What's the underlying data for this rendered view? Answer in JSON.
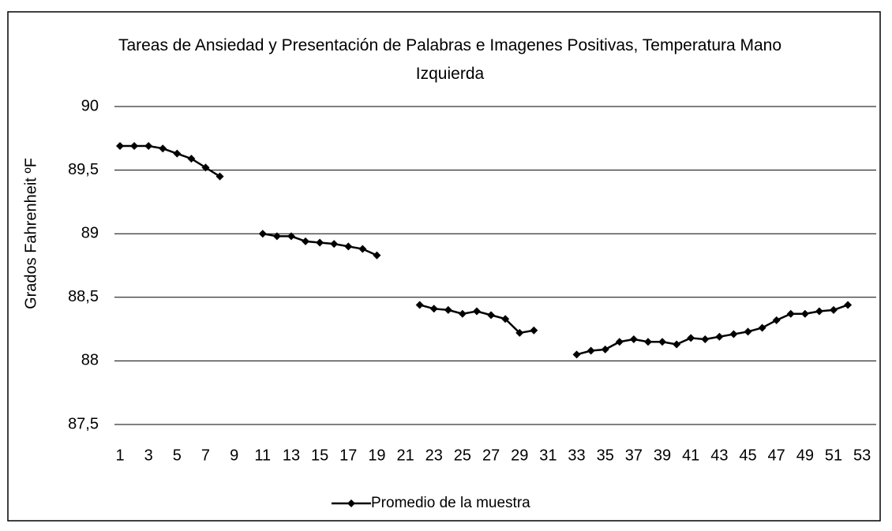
{
  "chart_data": {
    "type": "line",
    "title": "Tareas de Ansiedad y Presentación de Palabras e Imagenes Positivas, Temperatura Mano Izquierda",
    "y_label": "Grados Fahrenheit ºF",
    "categories": [
      1,
      null,
      3,
      null,
      5,
      null,
      7,
      null,
      9,
      null,
      11,
      null,
      13,
      null,
      15,
      null,
      17,
      null,
      19,
      null,
      21,
      null,
      23,
      null,
      25,
      null,
      27,
      null,
      29,
      null,
      31,
      null,
      33,
      null,
      35,
      null,
      37,
      null,
      39,
      null,
      41,
      null,
      43,
      null,
      45,
      null,
      47,
      null,
      49,
      null,
      51,
      null,
      53
    ],
    "series": [
      {
        "name": "Promedio de la muestra",
        "color": "#000000",
        "values": [
          89.69,
          89.69,
          89.69,
          89.67,
          89.63,
          89.59,
          89.52,
          89.45,
          null,
          null,
          89.0,
          88.98,
          88.98,
          88.94,
          88.93,
          88.92,
          88.9,
          88.88,
          88.83,
          null,
          null,
          88.44,
          88.41,
          88.4,
          88.37,
          88.39,
          88.36,
          88.33,
          88.22,
          88.24,
          null,
          null,
          88.05,
          88.08,
          88.09,
          88.15,
          88.17,
          88.15,
          88.15,
          88.13,
          88.18,
          88.17,
          88.19,
          88.21,
          88.23,
          88.26,
          88.32,
          88.37,
          88.37,
          88.39,
          88.4,
          88.44,
          null
        ]
      }
    ],
    "ylim": [
      87.5,
      90
    ],
    "yticks": [
      {
        "value": 87.5,
        "label": "87,5"
      },
      88,
      {
        "value": 88.5,
        "label": "88,5"
      },
      89,
      {
        "value": 89.5,
        "label": "89,5"
      },
      90
    ],
    "grid": true,
    "legend": "bottom"
  }
}
